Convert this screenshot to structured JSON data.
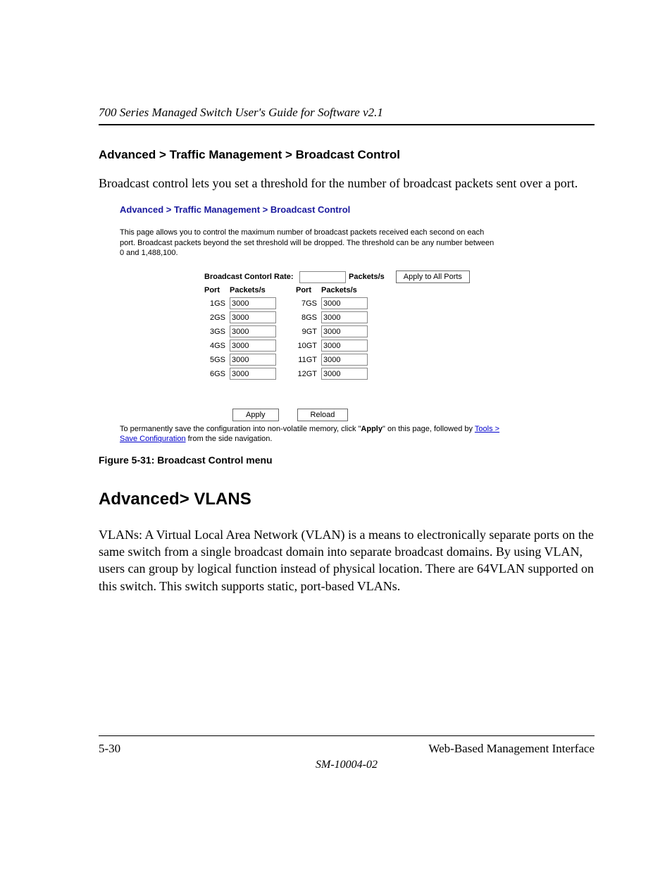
{
  "header": {
    "running_title": "700 Series Managed Switch User's Guide for Software v2.1"
  },
  "section1": {
    "heading": "Advanced > Traffic Management > Broadcast Control",
    "body": "Broadcast control lets you set a threshold for the number of broadcast packets sent over a port."
  },
  "screenshot": {
    "breadcrumb": "Advanced > Traffic Management > Broadcast Control",
    "description": "This page allows you to control the maximum number of broadcast packets received each second on each port. Broadcast packets beyond the set threshold will be dropped. The threshold can be any number between 0 and 1,488,100.",
    "rate_label": "Broadcast Contorl Rate:",
    "rate_value": "",
    "packets_unit": "Packets/s",
    "apply_all_label": "Apply to All Ports",
    "column_headers": {
      "port": "Port",
      "pkts": "Packets/s"
    },
    "ports_left": [
      {
        "name": "1GS",
        "value": "3000"
      },
      {
        "name": "2GS",
        "value": "3000"
      },
      {
        "name": "3GS",
        "value": "3000"
      },
      {
        "name": "4GS",
        "value": "3000"
      },
      {
        "name": "5GS",
        "value": "3000"
      },
      {
        "name": "6GS",
        "value": "3000"
      }
    ],
    "ports_right": [
      {
        "name": "7GS",
        "value": "3000"
      },
      {
        "name": "8GS",
        "value": "3000"
      },
      {
        "name": "9GT",
        "value": "3000"
      },
      {
        "name": "10GT",
        "value": "3000"
      },
      {
        "name": "11GT",
        "value": "3000"
      },
      {
        "name": "12GT",
        "value": "3000"
      }
    ],
    "apply_label": "Apply",
    "reload_label": "Reload",
    "save_note_pre": "To permanently save the configuration into non-volatile memory, click \"",
    "save_note_bold": "Apply",
    "save_note_post": "\" on this page, followed by ",
    "save_link": "Tools > Save Configuration",
    "save_note_tail": " from the side navigation."
  },
  "figure_caption": "Figure 5-31:  Broadcast Control menu",
  "section2": {
    "heading": "Advanced> VLANS",
    "body": "VLANs: A Virtual Local Area Network (VLAN) is a means to electronically separate ports on the same switch from a single broadcast domain into separate broadcast domains.  By using VLAN, users can group by logical function instead of physical location. There are 64VLAN supported on this switch.  This switch supports static, port-based VLANs."
  },
  "footer": {
    "page_number": "5-30",
    "section_name": "Web-Based Management Interface",
    "doc_number": "SM-10004-02"
  },
  "style": {
    "link_color": "#0000cc",
    "breadcrumb_color": "#1a1a9e"
  }
}
